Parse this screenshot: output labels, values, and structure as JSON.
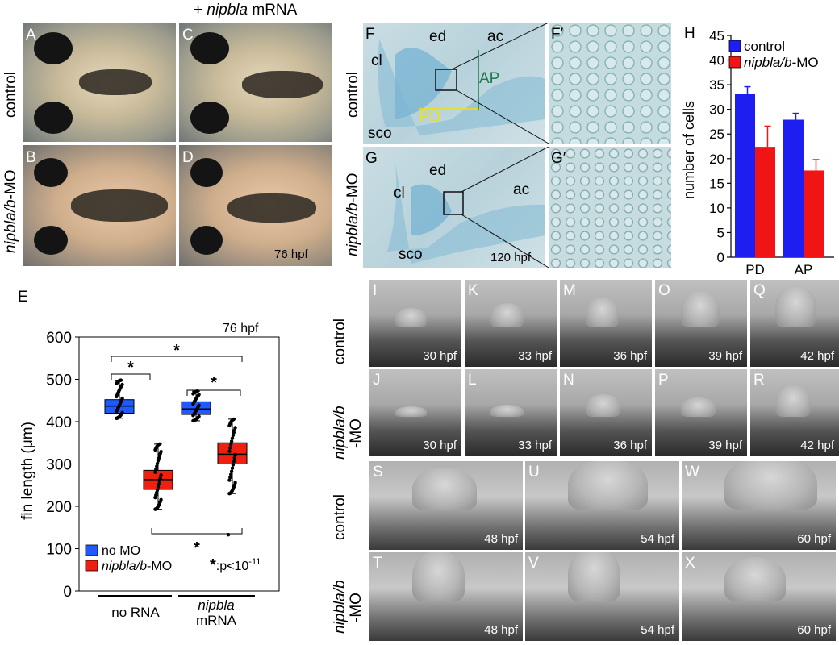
{
  "panelA": {
    "header_plus": "+ ",
    "header_gene": "nipbla",
    "header_rest": " mRNA",
    "row_control": "control",
    "row_mo_gene": "nipbla/b",
    "row_mo_rest": "-MO",
    "letters": [
      "A",
      "B",
      "C",
      "D"
    ],
    "time": "76 hpf"
  },
  "panelF": {
    "row_control": "control",
    "row_mo_gene": "nipbla/b",
    "row_mo_rest": "-MO",
    "letters": [
      "F",
      "F′",
      "G",
      "G′"
    ],
    "labels": {
      "cl": "cl",
      "ed": "ed",
      "ac": "ac",
      "AP": "AP",
      "PD": "PD",
      "sco": "sco"
    },
    "time": "120 hpf"
  },
  "panelH": {
    "letter": "H",
    "ylabel": "number of cells",
    "legend": [
      {
        "name": "control",
        "italic": false,
        "color": "#1e1ef0"
      },
      {
        "name": "nipbla/b",
        "suffix": "-MO",
        "italic": true,
        "color": "#f01414"
      }
    ],
    "yticks": [
      "0",
      "5",
      "10",
      "15",
      "20",
      "25",
      "30",
      "35",
      "40",
      "45"
    ]
  },
  "panelE": {
    "letter": "E",
    "time": "76 hpf",
    "ylabel": "fin length (μm)",
    "yticks": [
      "0",
      "100",
      "200",
      "300",
      "400",
      "500",
      "600"
    ],
    "legend_no_mo": "no MO",
    "legend_mo_gene": "nipbla/b",
    "legend_mo_rest": "-MO",
    "sig_star": "*",
    "sig_note": ":p<10",
    "sig_exp": "-11",
    "group1": "no RNA",
    "group2_gene": "nipbla",
    "group2_rest": "mRNA",
    "stars": [
      "*",
      "*",
      "*",
      "*"
    ]
  },
  "panelI": {
    "row_control": "control",
    "row_mo_gene": "nipbla/b",
    "row_mo_rest": "-MO",
    "top_letters": [
      "I",
      "K",
      "M",
      "O",
      "Q"
    ],
    "bottom_letters": [
      "J",
      "L",
      "N",
      "P",
      "R"
    ],
    "times": [
      "30 hpf",
      "33 hpf",
      "36 hpf",
      "39 hpf",
      "42 hpf"
    ]
  },
  "panelS": {
    "row_control": "control",
    "row_mo_gene": "nipbla/b",
    "row_mo_rest": "-MO",
    "top_letters": [
      "S",
      "U",
      "W"
    ],
    "bottom_letters": [
      "T",
      "V",
      "X"
    ],
    "times": [
      "48 hpf",
      "54 hpf",
      "60 hpf"
    ]
  },
  "chart_data": [
    {
      "type": "bar",
      "title": "",
      "xlabel": "",
      "ylabel": "number of cells",
      "ylim": [
        0,
        45
      ],
      "categories": [
        "PD",
        "AP"
      ],
      "series": [
        {
          "name": "control",
          "values": [
            33.2,
            27.9
          ],
          "errors": [
            1.4,
            1.3
          ]
        },
        {
          "name": "nipbla/b-MO",
          "values": [
            22.4,
            17.6
          ],
          "errors": [
            4.2,
            2.2
          ]
        }
      ],
      "legend": "top-right",
      "grid": false
    },
    {
      "type": "box",
      "title": "",
      "ylabel": "fin length (μm)",
      "ylim": [
        0,
        600
      ],
      "groups": [
        "no RNA",
        "nipbla mRNA"
      ],
      "series": [
        {
          "name": "no MO",
          "group": "no RNA",
          "q1": 420,
          "median": 437,
          "q3": 452,
          "whisker_low": 408,
          "whisker_high": 498
        },
        {
          "name": "nipbla/b-MO",
          "group": "no RNA",
          "q1": 240,
          "median": 263,
          "q3": 285,
          "whisker_low": 193,
          "whisker_high": 347
        },
        {
          "name": "no MO",
          "group": "nipbla mRNA",
          "q1": 417,
          "median": 430,
          "q3": 447,
          "whisker_low": 402,
          "whisker_high": 472
        },
        {
          "name": "nipbla/b-MO",
          "group": "nipbla mRNA",
          "q1": 300,
          "median": 323,
          "q3": 350,
          "whisker_low": 230,
          "whisker_high": 406,
          "outliers": [
            133
          ]
        }
      ],
      "legend": "bottom-left",
      "grid": false
    }
  ]
}
